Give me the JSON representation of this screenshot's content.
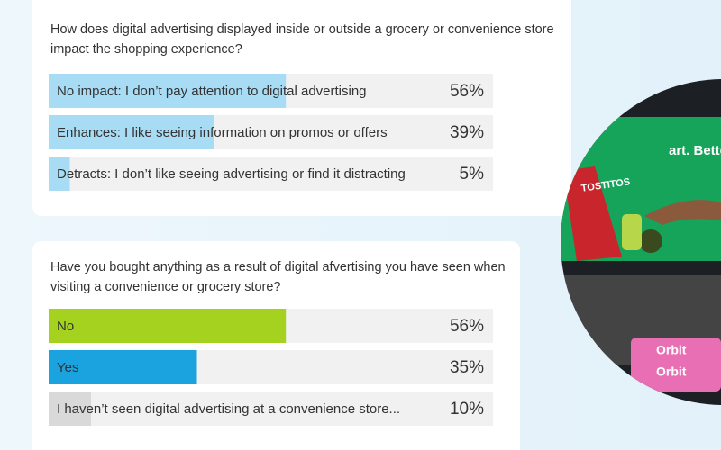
{
  "chart_data": [
    {
      "type": "bar",
      "title": "How does digital advertising displayed inside or outside a grocery or convenience store impact the shopping experience?",
      "categories": [
        "No impact: I don’t pay attention to digital advertising",
        "Enhances: I like seeing information on promos or offers",
        "Detracts: I don’t like seeing advertising or find it distracting"
      ],
      "values": [
        56,
        39,
        5
      ],
      "value_labels": [
        "56%",
        "39%",
        "5%"
      ],
      "colors": [
        "#a8dcf5",
        "#a8dcf5",
        "#a8dcf5"
      ],
      "xlim": [
        0,
        100
      ]
    },
    {
      "type": "bar",
      "title": "Have you bought anything as a result of digital afvertising you have seen when visiting a convenience or grocery store?",
      "categories": [
        "No",
        "Yes",
        "I haven’t seen digital advertising at a convenience store..."
      ],
      "values": [
        56,
        35,
        10
      ],
      "value_labels": [
        "56%",
        "35%",
        "10%"
      ],
      "colors": [
        "#a4d21e",
        "#1aa3df",
        "#d9d9d9"
      ],
      "xlim": [
        0,
        100
      ]
    }
  ],
  "photo": {
    "headline": "art. Better together.",
    "brands": [
      "TOSTITOS",
      "Orbit",
      "Orbit"
    ]
  }
}
